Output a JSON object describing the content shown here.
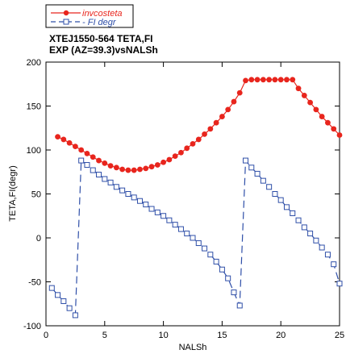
{
  "chart_data": {
    "type": "line",
    "title_lines": [
      "XTEJ1550-564 TETA,FI",
      "EXP (AZ=39.3)vsNALSh"
    ],
    "xlabel": "NALSh",
    "ylabel": "TETA,FI(degr)",
    "xlim": [
      0,
      25
    ],
    "ylim": [
      -100,
      200
    ],
    "xticks": [
      0,
      5,
      10,
      15,
      20,
      25
    ],
    "yticks": [
      -100,
      -50,
      0,
      50,
      100,
      150,
      200
    ],
    "grid": false,
    "legend_position": "top-left",
    "series": [
      {
        "name": "invcosteta",
        "color": "#e8251d",
        "marker": "circle",
        "line_style": "solid",
        "points": [
          [
            1.0,
            115
          ],
          [
            1.5,
            112
          ],
          [
            2.0,
            108
          ],
          [
            2.5,
            104
          ],
          [
            3.0,
            100
          ],
          [
            3.5,
            96
          ],
          [
            4.0,
            92
          ],
          [
            4.5,
            88
          ],
          [
            5.0,
            85
          ],
          [
            5.5,
            82
          ],
          [
            6.0,
            80
          ],
          [
            6.5,
            78
          ],
          [
            7.0,
            77
          ],
          [
            7.5,
            77
          ],
          [
            8.0,
            78
          ],
          [
            8.5,
            79
          ],
          [
            9.0,
            81
          ],
          [
            9.5,
            83
          ],
          [
            10.0,
            86
          ],
          [
            10.5,
            89
          ],
          [
            11.0,
            93
          ],
          [
            11.5,
            97
          ],
          [
            12.0,
            102
          ],
          [
            12.5,
            107
          ],
          [
            13.0,
            112
          ],
          [
            13.5,
            118
          ],
          [
            14.0,
            124
          ],
          [
            14.5,
            131
          ],
          [
            15.0,
            138
          ],
          [
            15.5,
            146
          ],
          [
            16.0,
            155
          ],
          [
            16.5,
            165
          ],
          [
            17.0,
            179
          ],
          [
            17.5,
            180
          ],
          [
            18.0,
            180
          ],
          [
            18.5,
            180
          ],
          [
            19.0,
            180
          ],
          [
            19.5,
            180
          ],
          [
            20.0,
            180
          ],
          [
            20.5,
            180
          ],
          [
            21.0,
            180
          ],
          [
            21.5,
            170
          ],
          [
            22.0,
            162
          ],
          [
            22.5,
            154
          ],
          [
            23.0,
            146
          ],
          [
            23.5,
            138
          ],
          [
            24.0,
            131
          ],
          [
            24.5,
            124
          ],
          [
            25.0,
            117
          ]
        ]
      },
      {
        "name": "- FI degr",
        "color": "#2f4fa8",
        "marker": "square",
        "line_style": "dashed",
        "points": [
          [
            0.5,
            -57
          ],
          [
            1.0,
            -65
          ],
          [
            1.5,
            -72
          ],
          [
            2.0,
            -80
          ],
          [
            2.5,
            -88
          ],
          [
            3.0,
            88
          ],
          [
            3.5,
            83
          ],
          [
            4.0,
            77
          ],
          [
            4.5,
            72
          ],
          [
            5.0,
            67
          ],
          [
            5.5,
            63
          ],
          [
            6.0,
            58
          ],
          [
            6.5,
            54
          ],
          [
            7.0,
            50
          ],
          [
            7.5,
            46
          ],
          [
            8.0,
            42
          ],
          [
            8.5,
            38
          ],
          [
            9.0,
            33
          ],
          [
            9.5,
            29
          ],
          [
            10.0,
            25
          ],
          [
            10.5,
            20
          ],
          [
            11.0,
            15
          ],
          [
            11.5,
            10
          ],
          [
            12.0,
            5
          ],
          [
            12.5,
            0
          ],
          [
            13.0,
            -6
          ],
          [
            13.5,
            -12
          ],
          [
            14.0,
            -19
          ],
          [
            14.5,
            -27
          ],
          [
            15.0,
            -36
          ],
          [
            15.5,
            -46
          ],
          [
            16.0,
            -62
          ],
          [
            16.5,
            -77
          ],
          [
            17.0,
            88
          ],
          [
            17.5,
            80
          ],
          [
            18.0,
            73
          ],
          [
            18.5,
            65
          ],
          [
            19.0,
            58
          ],
          [
            19.5,
            50
          ],
          [
            20.0,
            43
          ],
          [
            20.5,
            35
          ],
          [
            21.0,
            28
          ],
          [
            21.5,
            20
          ],
          [
            22.0,
            12
          ],
          [
            22.5,
            5
          ],
          [
            23.0,
            -3
          ],
          [
            23.5,
            -11
          ],
          [
            24.0,
            -19
          ],
          [
            24.5,
            -30
          ],
          [
            25.0,
            -52
          ]
        ]
      }
    ]
  }
}
